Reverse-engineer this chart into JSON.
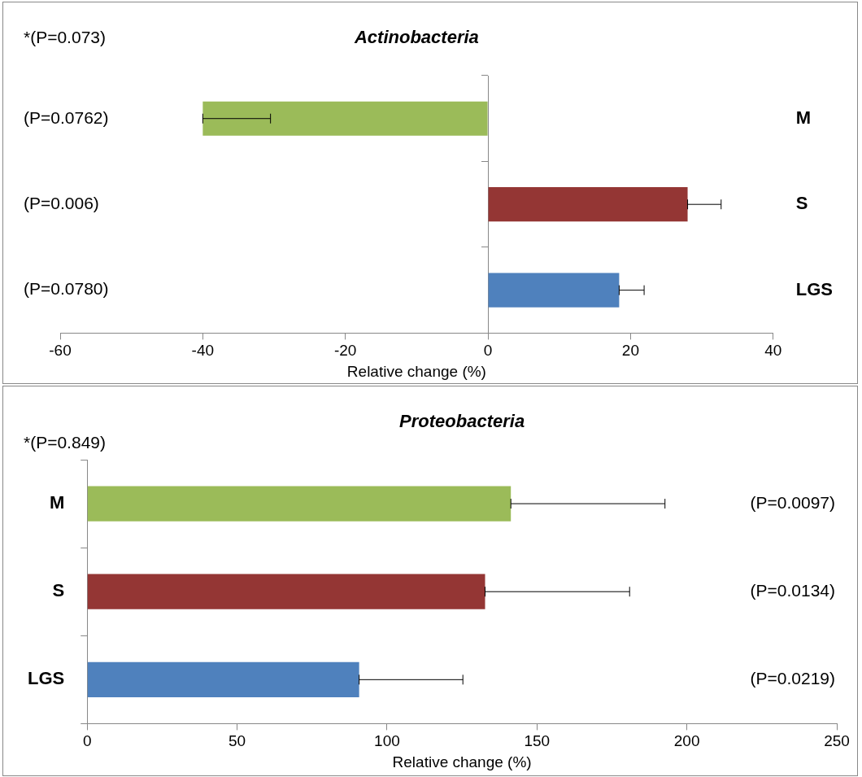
{
  "chart_data": [
    {
      "type": "bar",
      "orientation": "horizontal",
      "title": "Actinobacteria",
      "xlabel": "Relative change (%)",
      "categories": [
        "M",
        "S",
        "LGS"
      ],
      "values": [
        -40,
        28,
        18.4
      ],
      "colors": [
        "#9bbb59",
        "#943634",
        "#4f81bd"
      ],
      "errors": [
        [
          -40,
          -30.5
        ],
        [
          28,
          32.7
        ],
        [
          18.4,
          21.9
        ]
      ],
      "xlim": [
        -60,
        40
      ],
      "xticks": [
        -60,
        -40,
        -20,
        0,
        20,
        40
      ],
      "grid": false,
      "legend": false,
      "ref_lines": [
        {
          "axis": "x",
          "value": 0
        }
      ],
      "annotations": [
        "*(P=0.073)",
        "(P=0.0762)",
        "(P=0.006)",
        "(P=0.0780)"
      ]
    },
    {
      "type": "bar",
      "orientation": "horizontal",
      "title": "Proteobacteria",
      "xlabel": "Relative change (%)",
      "categories": [
        "M",
        "S",
        "LGS"
      ],
      "values": [
        141.3,
        132.7,
        90.7
      ],
      "colors": [
        "#9bbb59",
        "#943634",
        "#4f81bd"
      ],
      "errors": [
        [
          141.3,
          192.7
        ],
        [
          132.7,
          180.9
        ],
        [
          90.7,
          125.3
        ]
      ],
      "xlim": [
        0,
        250
      ],
      "xticks": [
        0,
        50,
        100,
        150,
        200,
        250
      ],
      "grid": false,
      "legend": false,
      "annotations": [
        "*(P=0.849)",
        "(P=0.0097)",
        "(P=0.0134)",
        "(P=0.0219)"
      ]
    }
  ]
}
